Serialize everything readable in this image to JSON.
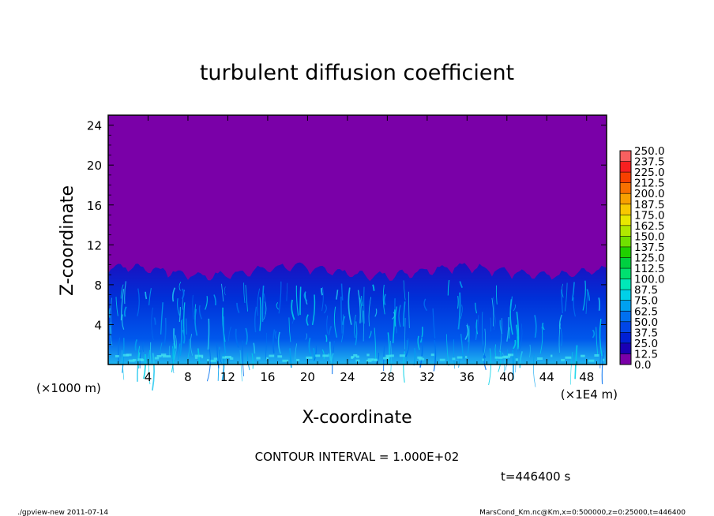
{
  "chart_data": {
    "type": "heatmap",
    "title": "turbulent diffusion coefficient",
    "xlabel": "X-coordinate",
    "ylabel": "Z-coordinate",
    "x_unit_left": "(×1000 m)",
    "x_unit_right": "(×1E4 m)",
    "xlim": [
      0,
      50
    ],
    "ylim": [
      0,
      25
    ],
    "x_ticks": [
      "4",
      "8",
      "12",
      "16",
      "20",
      "24",
      "28",
      "32",
      "36",
      "40",
      "44",
      "48"
    ],
    "x_tick_values": [
      4,
      8,
      12,
      16,
      20,
      24,
      28,
      32,
      36,
      40,
      44,
      48
    ],
    "y_ticks": [
      "4",
      "8",
      "12",
      "16",
      "20",
      "24"
    ],
    "y_tick_values": [
      4,
      8,
      12,
      16,
      20,
      24
    ],
    "contour_interval": "CONTOUR INTERVAL = 1.000E+02",
    "time_label": "t=446400 s",
    "colorbar": {
      "levels": [
        "0.0",
        "12.5",
        "25.0",
        "37.5",
        "50.0",
        "62.5",
        "75.0",
        "87.5",
        "100.0",
        "112.5",
        "125.0",
        "137.5",
        "150.0",
        "162.5",
        "175.0",
        "187.5",
        "200.0",
        "212.5",
        "225.0",
        "237.5",
        "250.0"
      ],
      "colors": [
        "#7a00a8",
        "#1a00b4",
        "#0020d4",
        "#0046e8",
        "#0070f0",
        "#00a0f0",
        "#00d0e8",
        "#00e8b8",
        "#00e070",
        "#00d040",
        "#20d000",
        "#70e000",
        "#b0e800",
        "#e8e800",
        "#f8c800",
        "#f8a000",
        "#f87000",
        "#f84000",
        "#f82020",
        "#f86060"
      ]
    },
    "regions": [
      {
        "name": "background",
        "z_range": [
          9,
          25
        ],
        "value_approx": "0.0",
        "color": "#7a00a8"
      },
      {
        "name": "turbulent-layer",
        "z_range": [
          0,
          10
        ],
        "value_range_approx": [
          "12.5",
          "75.0"
        ],
        "color": "#0038d8"
      }
    ]
  },
  "footer": {
    "left": "./gpview-new   2011-07-14",
    "right": "MarsCond_Km.nc@Km,x=0:500000,z=0:25000,t=446400"
  }
}
